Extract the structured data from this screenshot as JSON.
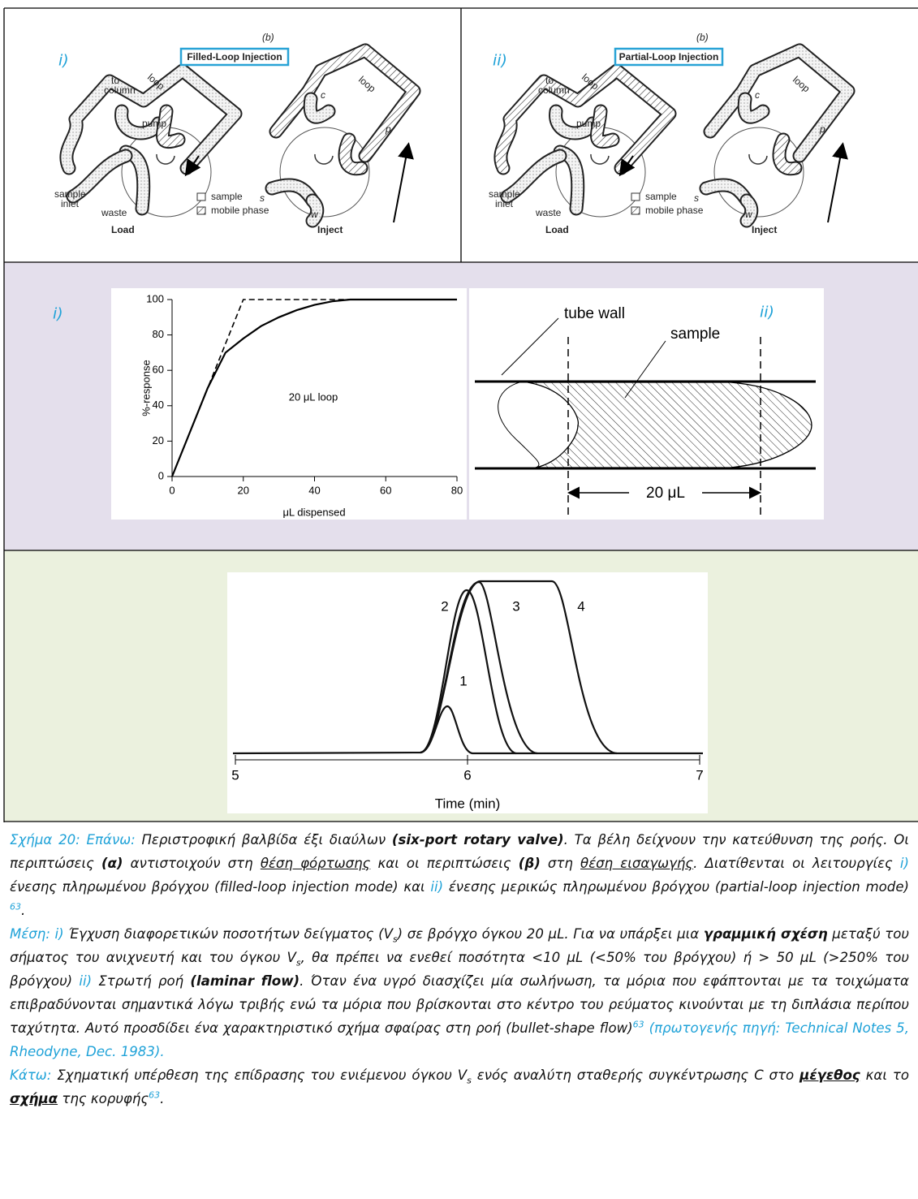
{
  "valve_panels": [
    {
      "label": "i)",
      "part": "(b)",
      "mode": "Filled-Loop Injection",
      "loop_left": "loop",
      "to_column": [
        "to",
        "column"
      ],
      "pump": "pump",
      "sample_inlet": [
        "sample",
        "inlet"
      ],
      "waste": "waste",
      "load": "Load",
      "loop_right": "loop",
      "c": "c",
      "p": "p",
      "s": "s",
      "w": "w",
      "inject": "Inject",
      "legend": [
        "sample",
        "mobile phase"
      ]
    },
    {
      "label": "ii)",
      "part": "(b)",
      "mode": "Partial-Loop Injection",
      "loop_left": "loop",
      "to_column": [
        "to",
        "column"
      ],
      "pump": "pump",
      "sample_inlet": [
        "sample",
        "inlet"
      ],
      "waste": "waste",
      "load": "Load",
      "loop_right": "loop",
      "c": "c",
      "p": "p",
      "s": "s",
      "w": "w",
      "inject": "Inject",
      "legend": [
        "sample",
        "mobile phase"
      ]
    }
  ],
  "response_chart": {
    "type": "line",
    "label": "i)",
    "xlabel": "μL dispensed",
    "ylabel": "%-response",
    "annotation": "20 μL loop",
    "xlim": [
      0,
      80
    ],
    "ylim": [
      0,
      100
    ],
    "xticks": [
      0,
      20,
      40,
      60,
      80
    ],
    "yticks": [
      0,
      20,
      40,
      60,
      80,
      100
    ],
    "series": [
      {
        "color": "#000000",
        "dashed": false,
        "x": [
          0,
          5,
          10,
          15,
          20,
          25,
          30,
          35,
          40,
          45,
          50,
          80
        ],
        "values": [
          0,
          25,
          50,
          70,
          78,
          85,
          90,
          94,
          97,
          99,
          100,
          100
        ]
      },
      {
        "color": "#000000",
        "dashed": true,
        "x": [
          0,
          20,
          80
        ],
        "values": [
          0,
          100,
          100
        ]
      }
    ]
  },
  "laminar": {
    "label": "ii)",
    "tube_wall": "tube wall",
    "sample": "sample",
    "volume": "20 μL"
  },
  "peaks_chart": {
    "xlabel": "Time (min)",
    "xlim": [
      5,
      7
    ],
    "xticks": [
      5,
      6,
      7
    ],
    "curve_labels": [
      "1",
      "2",
      "3",
      "4"
    ]
  },
  "caption": {
    "paragraphs": [
      {
        "runs": [
          {
            "text": "Σχήμα 20:  Επάνω:",
            "style": "c"
          },
          {
            "text": " Περιστροφική βαλβίδα έξι διαύλων ",
            "style": ""
          },
          {
            "text": "(six-port rotary valve)",
            "style": "b"
          },
          {
            "text": ". Τα βέλη δείχνουν την κατεύθυνση της ροής. Οι περιπτώσεις ",
            "style": ""
          },
          {
            "text": "(α)",
            "style": "b"
          },
          {
            "text": " αντιστοιχούν στη ",
            "style": ""
          },
          {
            "text": "θέση φόρτωσης",
            "style": "u"
          },
          {
            "text": " και οι περιπτώσεις ",
            "style": ""
          },
          {
            "text": "(β)",
            "style": "b"
          },
          {
            "text": " στη ",
            "style": ""
          },
          {
            "text": "θέση εισαγωγής",
            "style": "u"
          },
          {
            "text": ". Διατίθενται οι λειτουργίες ",
            "style": ""
          },
          {
            "text": "i)",
            "style": "c"
          },
          {
            "text": " ένεσης πληρωμένου βρόγχου (filled-loop injection mode) και ",
            "style": ""
          },
          {
            "text": "ii)",
            "style": "c"
          },
          {
            "text": " ένεσης μερικώς πληρωμένου βρόγχου (partial-loop injection mode) ",
            "style": ""
          },
          {
            "text": "63",
            "style": "c sup"
          },
          {
            "text": ".",
            "style": ""
          }
        ]
      },
      {
        "runs": [
          {
            "text": "Μέση: i)",
            "style": "c"
          },
          {
            "text": " Έγχυση διαφορετικών ποσοτήτων δείγματος (V",
            "style": ""
          },
          {
            "text": "s",
            "style": "sub"
          },
          {
            "text": ") σε βρόγχο όγκου 20 μL. Για να υπάρξει μια ",
            "style": ""
          },
          {
            "text": "γραμμική σχέση",
            "style": "b"
          },
          {
            "text": " μεταξύ του σήματος του ανιχνευτή και του όγκου  V",
            "style": ""
          },
          {
            "text": "s",
            "style": "sub"
          },
          {
            "text": ", θα πρέπει να ενεθεί ποσότητα <10 μL (<50% του βρόγχου) ή > 50 μL (>250% του βρόγχου) ",
            "style": ""
          },
          {
            "text": "ii)",
            "style": "c"
          },
          {
            "text": " Στρωτή ροή ",
            "style": ""
          },
          {
            "text": "(laminar flow)",
            "style": "b"
          },
          {
            "text": ". Όταν ένα υγρό διασχίζει μία σωλήνωση, τα μόρια που εφάπτονται με τα τοιχώματα επιβραδύνονται σημαντικά λόγω τριβής ενώ τα μόρια που βρίσκονται στο κέντρο του ρεύματος κινούνται με τη διπλάσια περίπου ταχύτητα. Αυτό προσδίδει ένα χαρακτηριστικό σχήμα σφαίρας στη ροή (bullet-shape flow)",
            "style": ""
          },
          {
            "text": "63",
            "style": "c sup"
          },
          {
            "text": " (πρωτογενής πηγή: Technical Notes 5, Rheodyne, Dec. 1983).",
            "style": "c"
          }
        ]
      },
      {
        "runs": [
          {
            "text": "Κάτω:",
            "style": "c"
          },
          {
            "text": " Σχηματική υπέρθεση της επίδρασης του ενιέμενου όγκου V",
            "style": ""
          },
          {
            "text": "s",
            "style": "sub"
          },
          {
            "text": " ενός αναλύτη σταθερής συγκέντρωσης C στο ",
            "style": ""
          },
          {
            "text": "μέγεθος",
            "style": "b u"
          },
          {
            "text": " και το ",
            "style": ""
          },
          {
            "text": "σχήμα",
            "style": "b u"
          },
          {
            "text": " της κορυφής",
            "style": ""
          },
          {
            "text": "63",
            "style": "c sup"
          },
          {
            "text": ".",
            "style": ""
          }
        ]
      }
    ]
  }
}
